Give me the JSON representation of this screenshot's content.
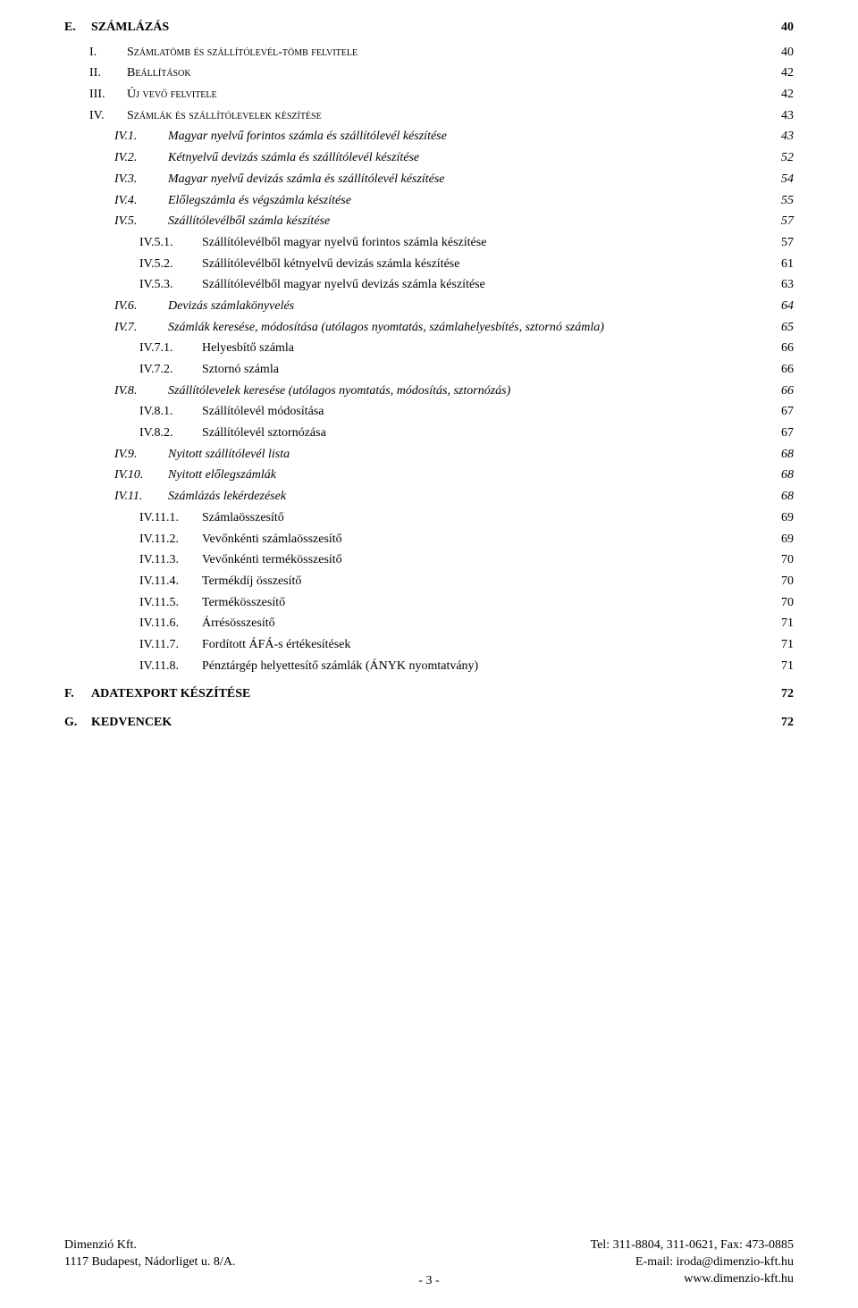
{
  "toc": [
    {
      "level": 0,
      "label": "E.",
      "title": "SZÁMLÁZÁS",
      "page": "40",
      "smallcaps": false,
      "bold": true
    },
    {
      "level": 1,
      "label": "I.",
      "title": "Számlatömb és szállítólevél-tömb felvitele",
      "page": "40",
      "smallcaps": true
    },
    {
      "level": 1,
      "label": "II.",
      "title": "Beállítások",
      "page": "42",
      "smallcaps": true
    },
    {
      "level": 1,
      "label": "III.",
      "title": "Új vevő felvitele",
      "page": "42",
      "smallcaps": true
    },
    {
      "level": 1,
      "label": "IV.",
      "title": "Számlák és szállítólevelek készítése",
      "page": "43",
      "smallcaps": true
    },
    {
      "level": 2,
      "label": "IV.1.",
      "title": "Magyar nyelvű forintos számla és szállítólevél készítése",
      "page": "43"
    },
    {
      "level": 2,
      "label": "IV.2.",
      "title": "Kétnyelvű devizás számla és szállítólevél készítése",
      "page": "52"
    },
    {
      "level": 2,
      "label": "IV.3.",
      "title": "Magyar nyelvű devizás számla és szállítólevél készítése",
      "page": "54"
    },
    {
      "level": 2,
      "label": "IV.4.",
      "title": "Előlegszámla és végszámla készítése",
      "page": "55"
    },
    {
      "level": 2,
      "label": "IV.5.",
      "title": "Szállítólevélből számla készítése",
      "page": "57"
    },
    {
      "level": 3,
      "label": "IV.5.1.",
      "title": "Szállítólevélből magyar nyelvű forintos számla készítése",
      "page": "57"
    },
    {
      "level": 3,
      "label": "IV.5.2.",
      "title": "Szállítólevélből kétnyelvű devizás számla készítése",
      "page": "61"
    },
    {
      "level": 3,
      "label": "IV.5.3.",
      "title": "Szállítólevélből magyar nyelvű devizás számla készítése",
      "page": "63"
    },
    {
      "level": 2,
      "label": "IV.6.",
      "title": "Devizás számlakönyvelés",
      "page": "64"
    },
    {
      "level": 2,
      "label": "IV.7.",
      "title": "Számlák keresése, módosítása (utólagos nyomtatás, számlahelyesbítés, sztornó számla)",
      "page": "65"
    },
    {
      "level": 3,
      "label": "IV.7.1.",
      "title": "Helyesbítő számla",
      "page": "66"
    },
    {
      "level": 3,
      "label": "IV.7.2.",
      "title": "Sztornó számla",
      "page": "66"
    },
    {
      "level": 2,
      "label": "IV.8.",
      "title": "Szállítólevelek keresése (utólagos nyomtatás, módosítás, sztornózás)",
      "page": "66"
    },
    {
      "level": 3,
      "label": "IV.8.1.",
      "title": "Szállítólevél módosítása",
      "page": "67"
    },
    {
      "level": 3,
      "label": "IV.8.2.",
      "title": "Szállítólevél sztornózása",
      "page": "67"
    },
    {
      "level": 2,
      "label": "IV.9.",
      "title": "Nyitott szállítólevél lista",
      "page": "68"
    },
    {
      "level": 2,
      "label": "IV.10.",
      "title": "Nyitott előlegszámlák",
      "page": "68"
    },
    {
      "level": 2,
      "label": "IV.11.",
      "title": "Számlázás lekérdezések",
      "page": "68"
    },
    {
      "level": 3,
      "label": "IV.11.1.",
      "title": "Számlaösszesítő",
      "page": "69"
    },
    {
      "level": 3,
      "label": "IV.11.2.",
      "title": "Vevőnkénti számlaösszesítő",
      "page": "69"
    },
    {
      "level": 3,
      "label": "IV.11.3.",
      "title": "Vevőnkénti termékösszesítő",
      "page": "70"
    },
    {
      "level": 3,
      "label": "IV.11.4.",
      "title": "Termékdíj összesítő",
      "page": "70"
    },
    {
      "level": 3,
      "label": "IV.11.5.",
      "title": "Termékösszesítő",
      "page": "70"
    },
    {
      "level": 3,
      "label": "IV.11.6.",
      "title": "Árrésösszesítő",
      "page": "71"
    },
    {
      "level": 3,
      "label": "IV.11.7.",
      "title": "Fordított ÁFÁ-s értékesítések",
      "page": "71"
    },
    {
      "level": 3,
      "label": "IV.11.8.",
      "title": "Pénztárgép helyettesítő számlák (ÁNYK nyomtatvány)",
      "page": "71"
    },
    {
      "level": 0,
      "label": "F.",
      "title": "ADATEXPORT KÉSZÍTÉSE",
      "page": "72",
      "smallcaps": false,
      "bold": true
    },
    {
      "level": 0,
      "label": "G.",
      "title": "KEDVENCEK",
      "page": "72",
      "smallcaps": false,
      "bold": true
    }
  ],
  "footer": {
    "left1": "Dimenzió Kft.",
    "left2": "1117 Budapest, Nádorliget u. 8/A.",
    "right1": "Tel: 311-8804, 311-0621, Fax: 473-0885",
    "right2": "E-mail: iroda@dimenzio-kft.hu",
    "right3": "www.dimenzio-kft.hu",
    "page": "- 3 -"
  }
}
